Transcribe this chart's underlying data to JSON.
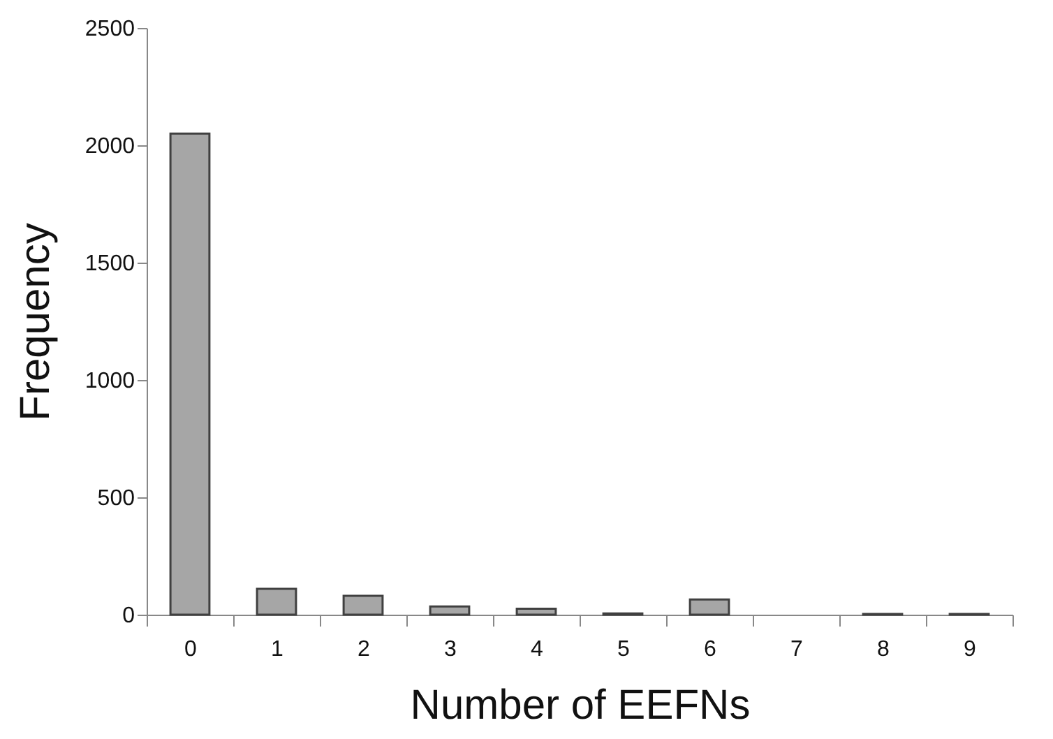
{
  "chart_data": {
    "type": "bar",
    "xlabel": "Number of EEFNs",
    "ylabel": "Frequency",
    "categories": [
      "0",
      "1",
      "2",
      "3",
      "4",
      "5",
      "6",
      "7",
      "8",
      "9"
    ],
    "values": [
      2050,
      110,
      80,
      35,
      25,
      5,
      65,
      0,
      3,
      3
    ],
    "color": "#a6a6a6",
    "ylim": [
      0,
      2500
    ],
    "yticks": [
      0,
      500,
      1000,
      1500,
      2000,
      2500
    ],
    "grid": false
  }
}
